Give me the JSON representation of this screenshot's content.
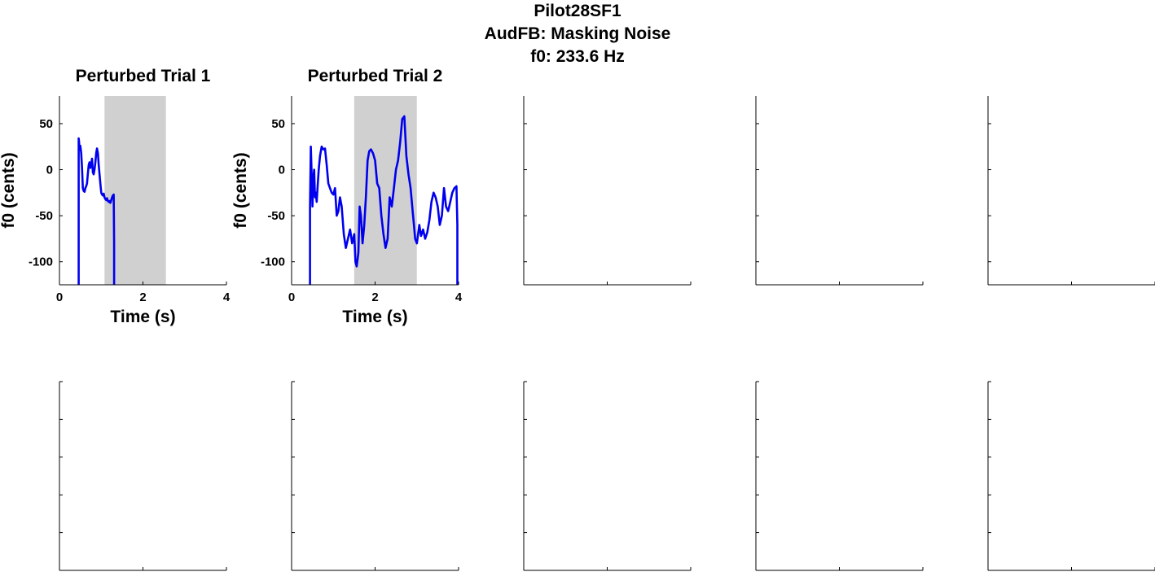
{
  "figure": {
    "title_lines": [
      "Pilot28SF1",
      "AudFB: Masking Noise",
      "f0: 233.6 Hz"
    ]
  },
  "colors": {
    "trace": "#0000ee",
    "shade": "#d0d0d0",
    "axis": "#000000"
  },
  "chart_data": [
    {
      "type": "line",
      "title": "Perturbed Trial 1",
      "xlabel": "Time (s)",
      "ylabel": "f0 (cents)",
      "xlim": [
        0,
        4
      ],
      "ylim": [
        -125,
        80
      ],
      "xticks": [
        0,
        2,
        4
      ],
      "yticks": [
        50,
        0,
        -50,
        -100
      ],
      "xtick_labels": [
        "0",
        "2",
        "4"
      ],
      "ytick_labels": [
        "50",
        "0",
        "-50",
        "-100"
      ],
      "shaded_interval": [
        1.08,
        2.55
      ],
      "series": [
        {
          "x": [
            0.46,
            0.46,
            0.47,
            0.48,
            0.5,
            0.52,
            0.54,
            0.56,
            0.58,
            0.6,
            0.62,
            0.64,
            0.66,
            0.68,
            0.7,
            0.72,
            0.74,
            0.76,
            0.78,
            0.8,
            0.82,
            0.84,
            0.86,
            0.88,
            0.9,
            0.92,
            0.94,
            0.96,
            0.98,
            1.0,
            1.02,
            1.04,
            1.06,
            1.08,
            1.1,
            1.12,
            1.14,
            1.16,
            1.18,
            1.2,
            1.22,
            1.24,
            1.26,
            1.28,
            1.3,
            1.31,
            1.31
          ],
          "y": [
            -125,
            34,
            30,
            22,
            26,
            18,
            2,
            -20,
            -23,
            -24,
            -20,
            -18,
            -15,
            -5,
            5,
            8,
            2,
            6,
            12,
            -3,
            -5,
            0,
            8,
            18,
            23,
            18,
            5,
            -5,
            -15,
            -25,
            -27,
            -28,
            -26,
            -30,
            -32,
            -33,
            -31,
            -34,
            -35,
            -34,
            -36,
            -33,
            -30,
            -28,
            -27,
            -80,
            -125
          ]
        }
      ]
    },
    {
      "type": "line",
      "title": "Perturbed Trial 2",
      "xlabel": "Time (s)",
      "ylabel": "f0 (cents)",
      "xlim": [
        0,
        4
      ],
      "ylim": [
        -125,
        80
      ],
      "xticks": [
        0,
        2,
        4
      ],
      "yticks": [
        50,
        0,
        -50,
        -100
      ],
      "xtick_labels": [
        "0",
        "2",
        "4"
      ],
      "ytick_labels": [
        "50",
        "0",
        "-50",
        "-100"
      ],
      "shaded_interval": [
        1.5,
        3.0
      ],
      "series": [
        {
          "x": [
            0.44,
            0.44,
            0.46,
            0.48,
            0.5,
            0.52,
            0.54,
            0.56,
            0.58,
            0.6,
            0.62,
            0.65,
            0.68,
            0.72,
            0.76,
            0.8,
            0.84,
            0.88,
            0.92,
            0.96,
            1.0,
            1.04,
            1.08,
            1.12,
            1.16,
            1.2,
            1.25,
            1.3,
            1.35,
            1.4,
            1.45,
            1.5,
            1.53,
            1.56,
            1.6,
            1.63,
            1.66,
            1.7,
            1.74,
            1.78,
            1.82,
            1.86,
            1.9,
            1.95,
            2.0,
            2.05,
            2.1,
            2.15,
            2.2,
            2.25,
            2.3,
            2.35,
            2.4,
            2.45,
            2.5,
            2.55,
            2.6,
            2.65,
            2.7,
            2.75,
            2.8,
            2.85,
            2.9,
            2.93,
            2.96,
            3.0,
            3.03,
            3.06,
            3.1,
            3.15,
            3.2,
            3.25,
            3.3,
            3.35,
            3.4,
            3.45,
            3.5,
            3.55,
            3.6,
            3.65,
            3.7,
            3.75,
            3.8,
            3.85,
            3.9,
            3.95,
            3.97,
            3.97
          ],
          "y": [
            -125,
            -40,
            25,
            -5,
            -40,
            -10,
            0,
            -30,
            -25,
            -35,
            -20,
            0,
            15,
            25,
            22,
            23,
            5,
            -15,
            -20,
            -25,
            -27,
            -20,
            -50,
            -45,
            -30,
            -40,
            -70,
            -85,
            -75,
            -65,
            -80,
            -70,
            -100,
            -105,
            -90,
            -40,
            -50,
            -80,
            -60,
            -30,
            10,
            20,
            22,
            18,
            10,
            -15,
            -20,
            -50,
            -70,
            -85,
            -75,
            -30,
            -40,
            -20,
            0,
            10,
            30,
            55,
            58,
            15,
            -5,
            -20,
            -45,
            -60,
            -75,
            -80,
            -70,
            -60,
            -72,
            -65,
            -75,
            -68,
            -55,
            -35,
            -25,
            -30,
            -40,
            -60,
            -50,
            -20,
            -40,
            -45,
            -35,
            -25,
            -20,
            -18,
            -60,
            -125
          ]
        }
      ]
    }
  ],
  "empty_axes": [
    {
      "panel": 3,
      "ylim": [
        -125,
        80
      ],
      "yticks": [
        50,
        0,
        -50,
        -100
      ],
      "xlim": [
        0,
        4
      ],
      "xticks": [
        0,
        2,
        4
      ]
    },
    {
      "panel": 4,
      "ylim": [
        -125,
        80
      ],
      "yticks": [
        50,
        0,
        -50,
        -100
      ],
      "xlim": [
        0,
        4
      ],
      "xticks": [
        0,
        2,
        4
      ]
    },
    {
      "panel": 5,
      "ylim": [
        -125,
        80
      ],
      "yticks": [
        50,
        0,
        -50,
        -100
      ],
      "xlim": [
        0,
        4
      ],
      "xticks": [
        0,
        2,
        4
      ]
    },
    {
      "panel": 6,
      "ylim": [
        0,
        1
      ],
      "yticks": [
        0,
        0.2,
        0.4,
        0.6,
        0.8,
        1
      ],
      "xlim": [
        0,
        1
      ],
      "xticks": [
        0,
        0.5,
        1
      ]
    },
    {
      "panel": 7,
      "ylim": [
        0,
        1
      ],
      "yticks": [
        0,
        0.2,
        0.4,
        0.6,
        0.8,
        1
      ],
      "xlim": [
        0,
        1
      ],
      "xticks": [
        0,
        0.5,
        1
      ]
    },
    {
      "panel": 8,
      "ylim": [
        0,
        1
      ],
      "yticks": [
        0,
        0.2,
        0.4,
        0.6,
        0.8,
        1
      ],
      "xlim": [
        0,
        1
      ],
      "xticks": [
        0,
        0.5,
        1
      ]
    },
    {
      "panel": 9,
      "ylim": [
        0,
        1
      ],
      "yticks": [
        0,
        0.2,
        0.4,
        0.6,
        0.8,
        1
      ],
      "xlim": [
        0,
        1
      ],
      "xticks": [
        0,
        0.5,
        1
      ]
    },
    {
      "panel": 10,
      "ylim": [
        0,
        1
      ],
      "yticks": [
        0,
        0.2,
        0.4,
        0.6,
        0.8,
        1
      ],
      "xlim": [
        0,
        1
      ],
      "xticks": [
        0,
        0.5,
        1
      ]
    }
  ]
}
